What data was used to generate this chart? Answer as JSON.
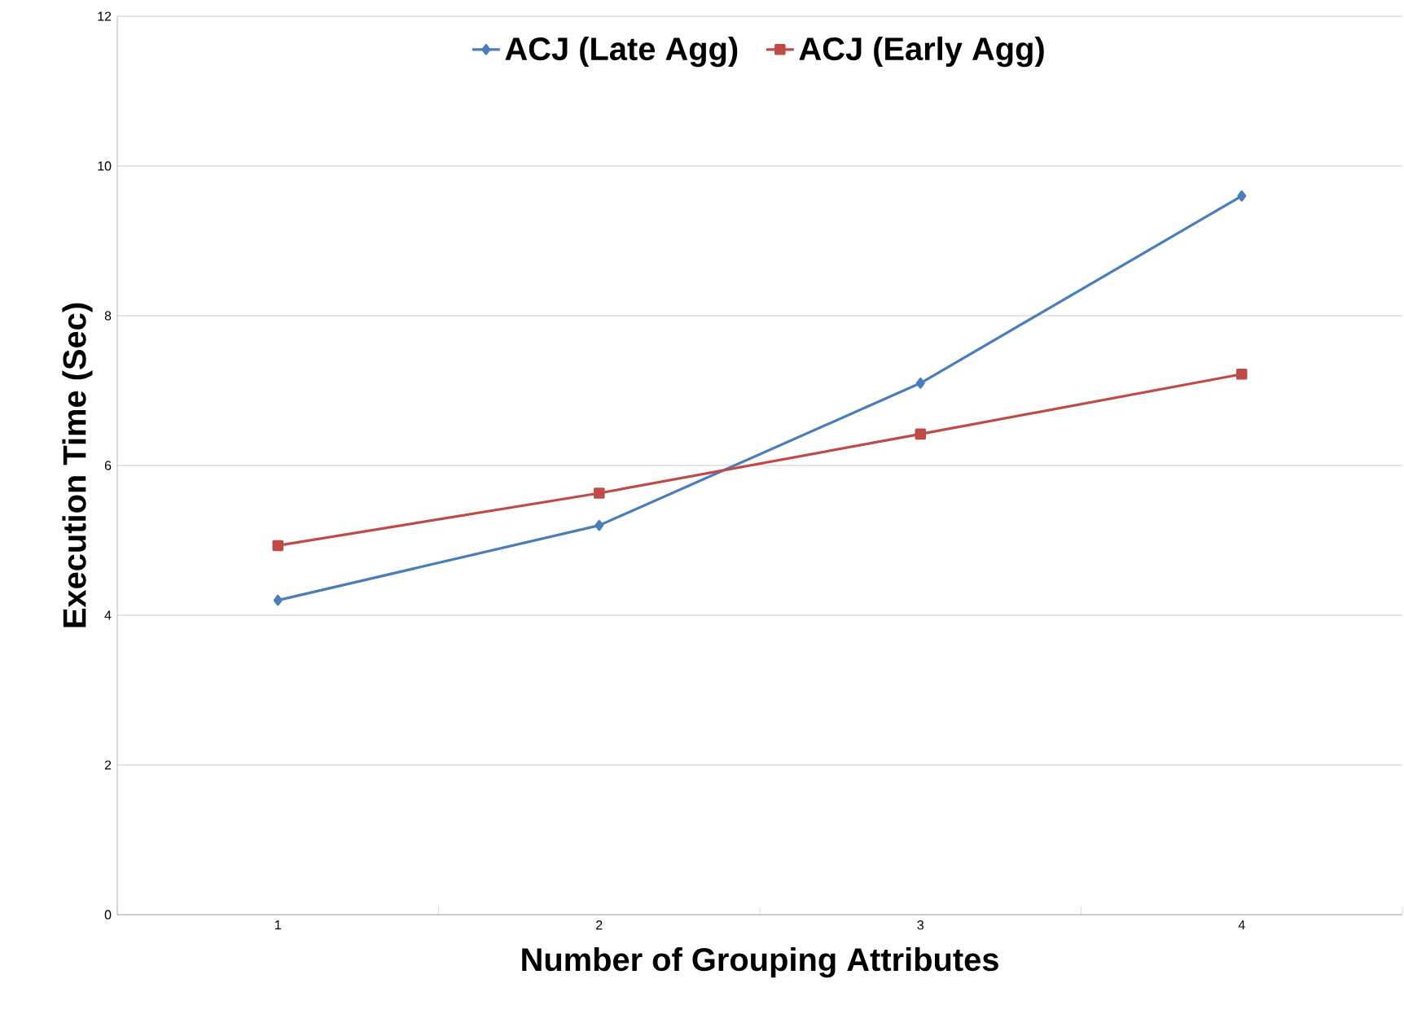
{
  "chart_data": {
    "type": "line",
    "xlabel": "Number of Grouping Attributes",
    "ylabel": "Execution Time (Sec)",
    "categories": [
      "1",
      "2",
      "3",
      "4"
    ],
    "series": [
      {
        "name": "ACJ (Late Agg)",
        "color": "#4a7ebb",
        "marker": "diamond",
        "values": [
          4.2,
          5.2,
          7.1,
          9.6
        ]
      },
      {
        "name": "ACJ (Early Agg)",
        "color": "#be4b48",
        "marker": "square",
        "values": [
          4.93,
          5.63,
          6.42,
          7.22
        ]
      }
    ],
    "ylim": [
      0,
      12
    ],
    "yticks": [
      0,
      2,
      4,
      6,
      8,
      10,
      12
    ],
    "grid": "y",
    "legend": "top"
  }
}
